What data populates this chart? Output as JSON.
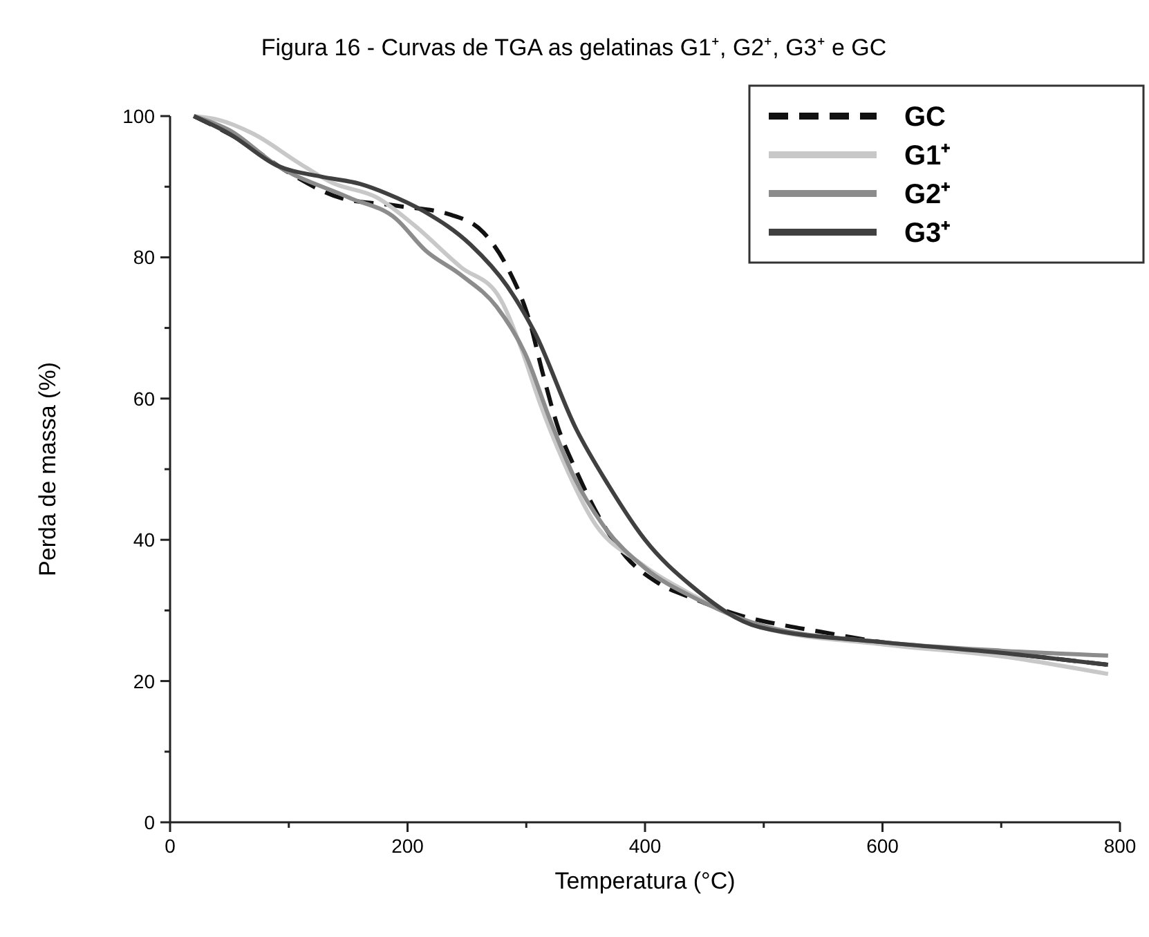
{
  "chart_data": {
    "type": "line",
    "title": "Figura 16 - Curvas de TGA as gelatinas G1⁺, G2⁺, G3⁺  e GC",
    "xlabel": "Temperatura (°C)",
    "ylabel": "Perda de massa (%)",
    "xlim": [
      0,
      800
    ],
    "ylim": [
      0,
      100
    ],
    "xticks": [
      0,
      {
        "value": 100,
        "label": null
      },
      200,
      {
        "value": 300,
        "label": null
      },
      400,
      {
        "value": 500,
        "label": null
      },
      600,
      {
        "value": 700,
        "label": null
      },
      800
    ],
    "yticks": [
      0,
      {
        "value": 10,
        "label": null
      },
      20,
      {
        "value": 30,
        "label": null
      },
      40,
      {
        "value": 50,
        "label": null
      },
      60,
      {
        "value": 70,
        "label": null
      },
      80,
      {
        "value": 90,
        "label": null
      },
      100
    ],
    "grid": false,
    "legend": "top right",
    "marker": "none",
    "series": [
      {
        "name": "GC",
        "color": "#111111",
        "line_style": "dashed",
        "x": [
          20,
          60,
          100,
          144,
          191,
          237,
          264,
          284,
          303,
          314,
          326,
          342,
          361,
          384,
          410,
          442,
          482,
          520,
          547,
          600,
          700,
          790
        ],
        "values": [
          100,
          96.5,
          92,
          88.4,
          87.3,
          86,
          83.5,
          78.6,
          70.8,
          63.5,
          56.3,
          49.8,
          43.3,
          37.6,
          34,
          31.6,
          29.2,
          27.8,
          27,
          25.5,
          24,
          22.3
        ]
      },
      {
        "name": "G1⁺",
        "color": "#c8c8c8",
        "line_style": "solid",
        "x": [
          20,
          40,
          70,
          109,
          136,
          175,
          206,
          245,
          276,
          296,
          311,
          331,
          357,
          396,
          442,
          500,
          600,
          700,
          790
        ],
        "values": [
          100,
          99.5,
          97.5,
          93.3,
          90.6,
          88.4,
          84.5,
          78.6,
          74.7,
          67,
          59.6,
          51.2,
          42.5,
          36.7,
          32,
          27.5,
          25.2,
          23.5,
          21
        ]
      },
      {
        "name": "G2⁺",
        "color": "#8c8c8c",
        "line_style": "solid",
        "x": [
          20,
          50,
          90,
          150,
          190,
          215,
          245,
          275,
          300,
          320,
          340,
          365,
          400,
          445,
          500,
          600,
          700,
          790
        ],
        "values": [
          100,
          98,
          93,
          88.5,
          85.5,
          81,
          77.5,
          73,
          66,
          57,
          49,
          42,
          36,
          31.5,
          27.8,
          25.5,
          24.3,
          23.6
        ]
      },
      {
        "name": "G3⁺",
        "color": "#404040",
        "line_style": "solid",
        "x": [
          20,
          50,
          90,
          128,
          160,
          183,
          214,
          253,
          284,
          307,
          342,
          369,
          400,
          439,
          497,
          600,
          700,
          790
        ],
        "values": [
          100,
          97.5,
          93,
          91.4,
          90.4,
          89,
          86.5,
          81.8,
          75.9,
          69.4,
          55.7,
          47.8,
          40,
          33.5,
          27.6,
          25.5,
          24,
          22.3
        ]
      }
    ]
  }
}
